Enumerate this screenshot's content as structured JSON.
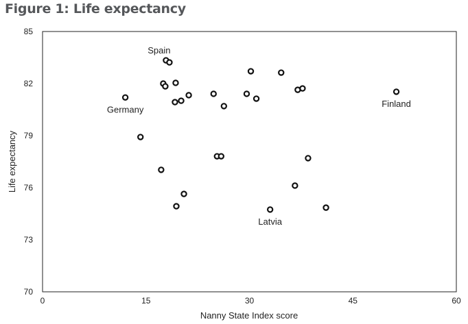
{
  "chart_data": {
    "type": "scatter",
    "title": "Figure 1: Life expectancy",
    "xlabel": "Nanny State Index score",
    "ylabel": "Life expectancy",
    "xlim": [
      0,
      60
    ],
    "ylim": [
      70,
      85
    ],
    "xticks": [
      0,
      15,
      30,
      45,
      60
    ],
    "yticks": [
      70,
      73,
      76,
      79,
      82,
      85
    ],
    "grid": false,
    "points": [
      {
        "x": 17.9,
        "y": 83.34,
        "label": "Spain"
      },
      {
        "x": 18.4,
        "y": 83.22
      },
      {
        "x": 30.2,
        "y": 82.71
      },
      {
        "x": 34.6,
        "y": 82.63
      },
      {
        "x": 17.5,
        "y": 82.0
      },
      {
        "x": 17.8,
        "y": 81.84
      },
      {
        "x": 19.3,
        "y": 82.04
      },
      {
        "x": 12.0,
        "y": 81.2,
        "label": "Germany"
      },
      {
        "x": 21.2,
        "y": 81.33
      },
      {
        "x": 20.1,
        "y": 81.01
      },
      {
        "x": 19.2,
        "y": 80.93
      },
      {
        "x": 24.8,
        "y": 81.41
      },
      {
        "x": 29.6,
        "y": 81.41
      },
      {
        "x": 31.0,
        "y": 81.13
      },
      {
        "x": 26.3,
        "y": 80.7
      },
      {
        "x": 37.0,
        "y": 81.64
      },
      {
        "x": 37.7,
        "y": 81.72
      },
      {
        "x": 51.3,
        "y": 81.53,
        "label": "Finland"
      },
      {
        "x": 14.2,
        "y": 78.92
      },
      {
        "x": 25.3,
        "y": 77.81
      },
      {
        "x": 25.9,
        "y": 77.81
      },
      {
        "x": 38.5,
        "y": 77.7
      },
      {
        "x": 17.2,
        "y": 77.03
      },
      {
        "x": 36.6,
        "y": 76.12
      },
      {
        "x": 20.5,
        "y": 75.64
      },
      {
        "x": 19.4,
        "y": 74.93
      },
      {
        "x": 33.0,
        "y": 74.74,
        "label": "Latvia"
      },
      {
        "x": 41.1,
        "y": 74.85
      }
    ]
  }
}
